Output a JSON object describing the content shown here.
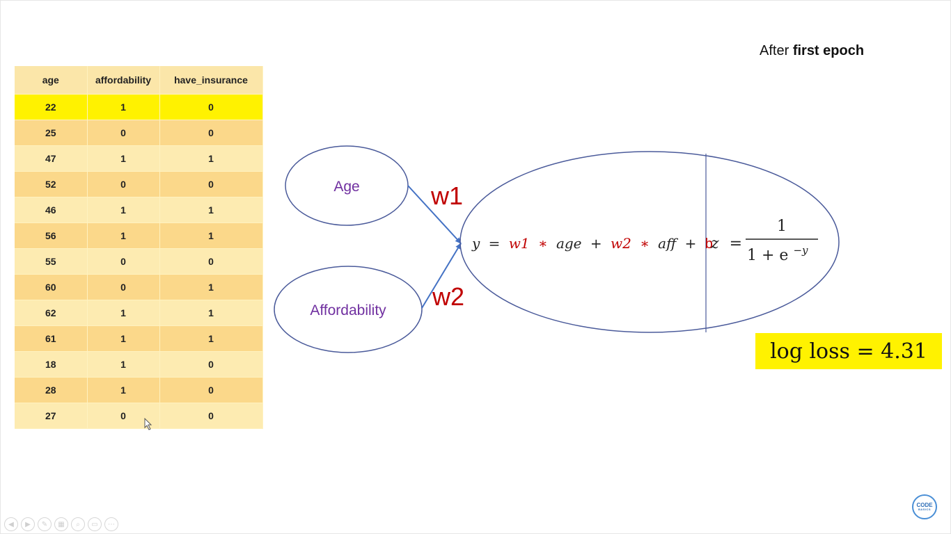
{
  "heading": {
    "prefix": "After",
    "bold": "first epoch"
  },
  "table": {
    "headers": [
      "age",
      "affordability",
      "have_insurance"
    ],
    "rows": [
      [
        "22",
        "1",
        "0"
      ],
      [
        "25",
        "0",
        "0"
      ],
      [
        "47",
        "1",
        "1"
      ],
      [
        "52",
        "0",
        "0"
      ],
      [
        "46",
        "1",
        "1"
      ],
      [
        "56",
        "1",
        "1"
      ],
      [
        "55",
        "0",
        "0"
      ],
      [
        "60",
        "0",
        "1"
      ],
      [
        "62",
        "1",
        "1"
      ],
      [
        "61",
        "1",
        "1"
      ],
      [
        "18",
        "1",
        "0"
      ],
      [
        "28",
        "1",
        "0"
      ],
      [
        "27",
        "0",
        "0"
      ]
    ],
    "highlight_color": "#fff200"
  },
  "diagram": {
    "input1": "Age",
    "input2": "Affordability",
    "weight1": "w1",
    "weight2": "w2",
    "equation": {
      "y": "y",
      "eq": "=",
      "w1": "w1",
      "star1": "∗",
      "age": "age",
      "plus1": "+",
      "w2": "w2",
      "star2": "∗",
      "aff": "aff",
      "plus2": "+",
      "b": "b"
    },
    "sigmoid": {
      "z": "z",
      "eq": "=",
      "numerator": "1",
      "denominator_base": "1 + e",
      "exponent": "−y"
    },
    "colors": {
      "input_text": "#7030a0",
      "weight": "#c00000",
      "outline": "#4a5a9a",
      "arrow": "#4472c4"
    }
  },
  "log_loss": "log loss = 4.31",
  "toolbar_icons": [
    "prev-icon",
    "next-icon",
    "pen-icon",
    "slides-icon",
    "zoom-icon",
    "subtitles-icon",
    "more-icon"
  ],
  "brand": {
    "main": "CODE",
    "sub": "BASICS"
  }
}
